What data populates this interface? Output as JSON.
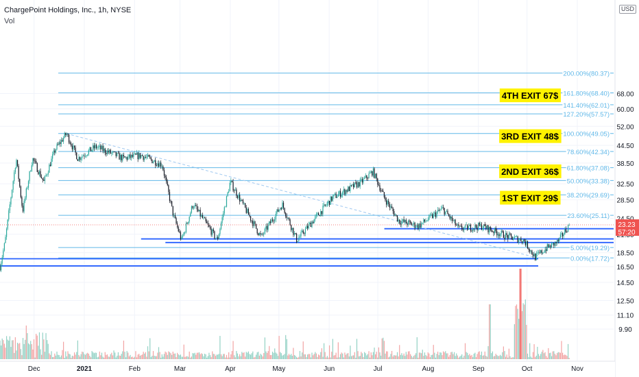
{
  "header": {
    "title": "ChargePoint Holdings, Inc., 1h, NYSE",
    "volume_label": "Vol",
    "currency": "USD"
  },
  "price_badge": {
    "price": "23.23",
    "countdown": "57:20"
  },
  "colors": {
    "fib": "#5fb7e8",
    "level": "#2962ff",
    "trend": "#9fc8f0",
    "candle_up": "#26a69a",
    "candle_down": "#131722",
    "vol_up": "#92d1c4",
    "vol_down": "#f2a3a3",
    "vol_spike": "#ef5350",
    "price_badge": "#ef5350",
    "label_bg": "#fff200"
  },
  "chart_data": {
    "type": "candlestick",
    "symbol": "ChargePoint Holdings, Inc.",
    "interval": "1h",
    "exchange": "NYSE",
    "y_scale": "log",
    "y_ticks": [
      "68.00",
      "60.00",
      "52.00",
      "44.50",
      "38.50",
      "32.50",
      "28.50",
      "24.50",
      "21.50",
      "18.50",
      "16.50",
      "14.50",
      "12.50",
      "11.10",
      "9.90"
    ],
    "x_ticks": [
      "Dec",
      "2021",
      "Feb",
      "Mar",
      "Apr",
      "May",
      "Jun",
      "Jul",
      "Aug",
      "Sep",
      "Oct",
      "Nov"
    ],
    "last_price": 23.23,
    "fib_levels": [
      {
        "pct": "200.00%",
        "price": 80.37,
        "label": "200.00%(80.37)"
      },
      {
        "pct": "161.80%",
        "price": 68.4,
        "label": "161.80%(68.40)"
      },
      {
        "pct": "141.40%",
        "price": 62.01,
        "label": "141.40%(62.01)"
      },
      {
        "pct": "127.20%",
        "price": 57.57,
        "label": "127.20%(57.57)"
      },
      {
        "pct": "100.00%",
        "price": 49.05,
        "label": "100.00%(49.05)"
      },
      {
        "pct": "78.60%",
        "price": 42.34,
        "label": "78.60%(42.34)"
      },
      {
        "pct": "61.80%",
        "price": 37.08,
        "label": "61.80%(37.08)"
      },
      {
        "pct": "50.00%",
        "price": 33.38,
        "label": "50.00%(33.38)"
      },
      {
        "pct": "38.20%",
        "price": 29.69,
        "label": "38.20%(29.69)"
      },
      {
        "pct": "23.60%",
        "price": 25.11,
        "label": "23.60%(25.11)"
      },
      {
        "pct": "5.00%",
        "price": 19.29,
        "label": "5.00%(19.29)"
      },
      {
        "pct": "0.00%",
        "price": 17.72,
        "label": "0.00%(17.72)"
      }
    ],
    "annotations": [
      {
        "text": "4TH EXIT 67$",
        "price": 67
      },
      {
        "text": "3RD EXIT 48$",
        "price": 48
      },
      {
        "text": "2ND EXIT 36$",
        "price": 36
      },
      {
        "text": "1ST EXIT 29$",
        "price": 29
      }
    ],
    "support_resistance": [
      {
        "price": 22.5,
        "from": "Jul",
        "to": "Nov"
      },
      {
        "price": 20.7,
        "from": "Feb",
        "to": "Nov"
      },
      {
        "price": 20.1,
        "from": "Mar",
        "to": "Nov"
      },
      {
        "price": 17.6,
        "from": "Nov",
        "to": "Oct"
      },
      {
        "price": 16.6,
        "from": "Nov",
        "to": "Oct"
      }
    ],
    "price_path": [
      {
        "date": "2020-11-10",
        "price": 16.5
      },
      {
        "date": "2020-11-13",
        "price": 20.0
      },
      {
        "date": "2020-11-17",
        "price": 30.0
      },
      {
        "date": "2020-11-20",
        "price": 40.0
      },
      {
        "date": "2020-11-24",
        "price": 26.0
      },
      {
        "date": "2020-11-30",
        "price": 40.0
      },
      {
        "date": "2020-12-07",
        "price": 33.0
      },
      {
        "date": "2020-12-14",
        "price": 43.0
      },
      {
        "date": "2020-12-21",
        "price": 49.0
      },
      {
        "date": "2020-12-28",
        "price": 40.0
      },
      {
        "date": "2021-01-08",
        "price": 44.0
      },
      {
        "date": "2021-01-25",
        "price": 40.0
      },
      {
        "date": "2021-02-05",
        "price": 41.0
      },
      {
        "date": "2021-02-18",
        "price": 38.0
      },
      {
        "date": "2021-02-25",
        "price": 25.0
      },
      {
        "date": "2021-03-02",
        "price": 20.5
      },
      {
        "date": "2021-03-09",
        "price": 27.5
      },
      {
        "date": "2021-03-24",
        "price": 20.5
      },
      {
        "date": "2021-04-01",
        "price": 33.0
      },
      {
        "date": "2021-04-20",
        "price": 21.0
      },
      {
        "date": "2021-05-03",
        "price": 27.5
      },
      {
        "date": "2021-05-12",
        "price": 20.5
      },
      {
        "date": "2021-06-03",
        "price": 29.0
      },
      {
        "date": "2021-06-21",
        "price": 33.0
      },
      {
        "date": "2021-06-28",
        "price": 36.0
      },
      {
        "date": "2021-07-05",
        "price": 29.0
      },
      {
        "date": "2021-07-14",
        "price": 24.0
      },
      {
        "date": "2021-07-26",
        "price": 23.0
      },
      {
        "date": "2021-08-10",
        "price": 26.5
      },
      {
        "date": "2021-08-20",
        "price": 22.5
      },
      {
        "date": "2021-09-03",
        "price": 23.0
      },
      {
        "date": "2021-09-20",
        "price": 21.0
      },
      {
        "date": "2021-09-29",
        "price": 20.5
      },
      {
        "date": "2021-10-06",
        "price": 17.8
      },
      {
        "date": "2021-10-13",
        "price": 19.2
      },
      {
        "date": "2021-10-20",
        "price": 20.2
      },
      {
        "date": "2021-10-27",
        "price": 23.2
      }
    ],
    "volume": {
      "spike_date": "2021-09-27",
      "second_spike_date": "2021-09-08"
    },
    "trend_line": {
      "from": {
        "date": "2020-12-21",
        "price": 49.0
      },
      "to": {
        "date": "2021-10-06",
        "price": 17.8
      }
    }
  }
}
